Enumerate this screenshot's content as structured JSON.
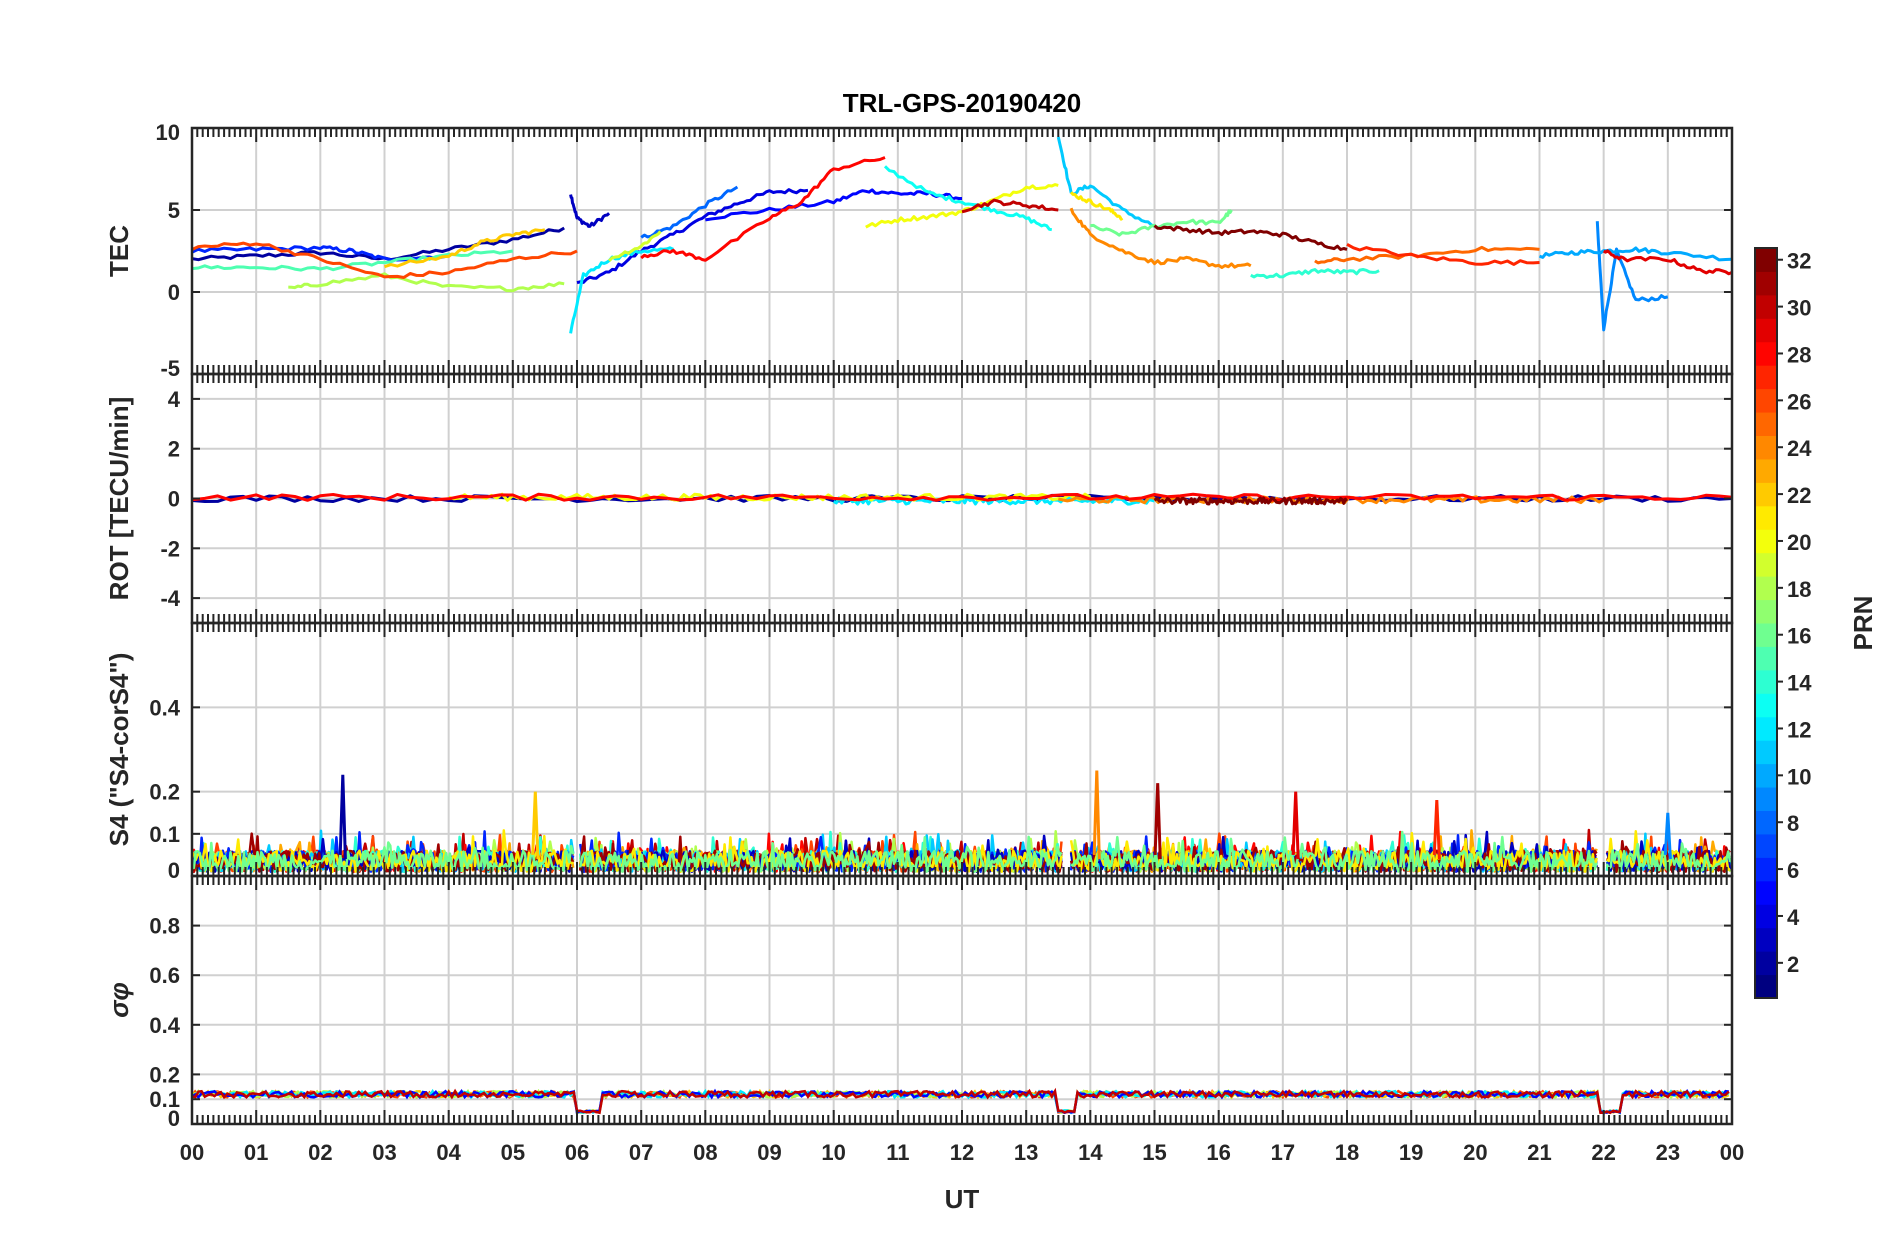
{
  "chart_data": {
    "type": "line",
    "title": "TRL-GPS-20190420",
    "xlabel": "UT",
    "x_tick_labels": [
      "00",
      "01",
      "02",
      "03",
      "04",
      "05",
      "06",
      "07",
      "08",
      "09",
      "10",
      "11",
      "12",
      "13",
      "14",
      "15",
      "16",
      "17",
      "18",
      "19",
      "20",
      "21",
      "22",
      "23",
      "00"
    ],
    "xlim": [
      0,
      24
    ],
    "colorbar": {
      "label": "PRN",
      "range": [
        1,
        32
      ],
      "tick_labels": [
        "2",
        "4",
        "6",
        "8",
        "10",
        "12",
        "14",
        "16",
        "18",
        "20",
        "22",
        "24",
        "26",
        "28",
        "30",
        "32"
      ]
    },
    "panels": [
      {
        "id": "tec",
        "ylabel": "TEC",
        "ylim": [
          -5,
          10
        ],
        "y_tick_labels": [
          "-5",
          "0",
          "5",
          "10"
        ],
        "series": [
          {
            "prn": 2,
            "x": [
              0.0,
              1.0,
              2.0,
              3.0,
              4.0,
              5.0,
              5.8
            ],
            "y": [
              2.0,
              2.2,
              2.4,
              2.0,
              2.6,
              3.2,
              3.9
            ]
          },
          {
            "prn": 3,
            "x": [
              5.9,
              6.0,
              6.2,
              6.5
            ],
            "y": [
              6.0,
              4.5,
              4.0,
              4.8
            ]
          },
          {
            "prn": 4,
            "x": [
              6.0,
              6.5,
              7.0,
              7.5,
              8.0,
              8.5,
              9.0,
              9.6
            ],
            "y": [
              0.5,
              1.2,
              2.5,
              3.5,
              4.6,
              5.4,
              6.1,
              6.2
            ]
          },
          {
            "prn": 5,
            "x": [
              8.0,
              9.0,
              10.0,
              10.5,
              11.0,
              11.5,
              12.0
            ],
            "y": [
              4.5,
              5.0,
              5.5,
              6.2,
              6.0,
              6.0,
              5.7
            ]
          },
          {
            "prn": 6,
            "x": [
              0.0,
              1.0,
              2.0,
              2.5,
              3.0,
              4.0
            ],
            "y": [
              2.5,
              2.6,
              2.7,
              2.5,
              2.0,
              2.2
            ]
          },
          {
            "prn": 8,
            "x": [
              7.0,
              7.5,
              8.0,
              8.5
            ],
            "y": [
              3.3,
              4.0,
              5.3,
              6.4
            ]
          },
          {
            "prn": 9,
            "x": [
              21.9,
              22.0,
              22.2,
              22.5,
              23.0
            ],
            "y": [
              4.2,
              -2.2,
              2.5,
              -0.5,
              -0.3
            ]
          },
          {
            "prn": 10,
            "x": [
              21.0,
              21.5,
              22.0,
              22.5,
              23.0,
              24.0
            ],
            "y": [
              2.2,
              2.4,
              2.5,
              2.6,
              2.4,
              2.0
            ]
          },
          {
            "prn": 11,
            "x": [
              13.5,
              13.7,
              14.0,
              14.5,
              15.0
            ],
            "y": [
              9.5,
              6.0,
              6.5,
              5.0,
              4.0
            ]
          },
          {
            "prn": 12,
            "x": [
              5.9,
              6.1,
              6.5,
              7.0,
              7.5
            ],
            "y": [
              -2.5,
              1.0,
              2.0,
              2.5,
              2.6
            ]
          },
          {
            "prn": 13,
            "x": [
              10.8,
              11.5,
              12.0,
              12.5,
              13.0,
              13.4
            ],
            "y": [
              7.6,
              6.0,
              5.5,
              5.0,
              4.5,
              3.8
            ]
          },
          {
            "prn": 14,
            "x": [
              16.5,
              17.0,
              17.5,
              18.0,
              18.5
            ],
            "y": [
              1.0,
              1.0,
              1.3,
              1.2,
              1.3
            ]
          },
          {
            "prn": 15,
            "x": [
              0.0,
              1.0,
              2.0,
              3.0,
              4.0,
              5.0
            ],
            "y": [
              1.5,
              1.5,
              1.4,
              1.8,
              2.2,
              2.5
            ]
          },
          {
            "prn": 16,
            "x": [
              14.0,
              14.5,
              15.0,
              15.5,
              16.0,
              16.2
            ],
            "y": [
              4.0,
              3.5,
              4.0,
              4.3,
              4.2,
              5.0
            ]
          },
          {
            "prn": 18,
            "x": [
              1.5,
              2.0,
              3.0,
              4.0,
              5.0,
              5.8
            ],
            "y": [
              0.2,
              0.5,
              1.0,
              0.3,
              0.2,
              0.5
            ]
          },
          {
            "prn": 19,
            "x": [
              6.5,
              7.0,
              7.3
            ],
            "y": [
              2.0,
              2.8,
              3.7
            ]
          },
          {
            "prn": 20,
            "x": [
              10.5,
              11.0,
              11.5,
              12.0,
              12.5,
              13.0,
              13.5
            ],
            "y": [
              4.0,
              4.4,
              4.6,
              4.9,
              5.6,
              6.4,
              6.5
            ]
          },
          {
            "prn": 21,
            "x": [
              13.7,
              14.0,
              14.3,
              14.5
            ],
            "y": [
              6.0,
              5.5,
              5.0,
              4.5
            ]
          },
          {
            "prn": 22,
            "x": [
              3.0,
              4.0,
              4.5,
              5.0,
              5.5
            ],
            "y": [
              1.5,
              2.2,
              3.0,
              3.5,
              3.8
            ]
          },
          {
            "prn": 24,
            "x": [
              13.7,
              14.0,
              14.5,
              15.0,
              15.5,
              16.0,
              16.5
            ],
            "y": [
              5.0,
              3.5,
              2.5,
              1.8,
              2.0,
              1.6,
              1.6
            ]
          },
          {
            "prn": 25,
            "x": [
              17.5,
              18.0,
              19.0,
              20.0,
              21.0
            ],
            "y": [
              1.8,
              2.0,
              2.2,
              2.6,
              2.6
            ]
          },
          {
            "prn": 26,
            "x": [
              0.0,
              1.0,
              2.0,
              3.0,
              4.0,
              5.0,
              6.0
            ],
            "y": [
              2.7,
              3.0,
              2.0,
              0.9,
              1.2,
              2.0,
              2.5
            ]
          },
          {
            "prn": 27,
            "x": [
              18.0,
              19.0,
              20.0,
              21.0
            ],
            "y": [
              2.8,
              2.2,
              1.8,
              1.8
            ]
          },
          {
            "prn": 28,
            "x": [
              7.0,
              7.5,
              8.0,
              9.0,
              9.5,
              10.0,
              10.8
            ],
            "y": [
              2.2,
              2.5,
              2.0,
              4.5,
              5.5,
              7.5,
              8.2
            ]
          },
          {
            "prn": 29,
            "x": [
              22.0,
              22.3,
              23.0,
              23.5,
              24.0
            ],
            "y": [
              2.5,
              2.0,
              2.0,
              1.3,
              1.2
            ]
          },
          {
            "prn": 30,
            "x": [
              12.0,
              12.5,
              13.0,
              13.5
            ],
            "y": [
              5.0,
              5.5,
              5.3,
              5.0
            ]
          },
          {
            "prn": 32,
            "x": [
              15.0,
              15.5,
              16.0,
              16.5,
              17.0,
              17.5,
              18.0
            ],
            "y": [
              4.0,
              3.8,
              3.6,
              3.7,
              3.5,
              3.0,
              2.6
            ]
          }
        ]
      },
      {
        "id": "rot",
        "ylabel": "ROT [TECU/min]",
        "ylim": [
          -5,
          5
        ],
        "y_tick_labels": [
          "-4",
          "-2",
          "0",
          "2",
          "4"
        ],
        "series": [
          {
            "prn": 2,
            "x": [
              0.0,
              24.0
            ],
            "y": [
              0.0,
              0.0
            ]
          },
          {
            "prn": 12,
            "x": [
              10.0,
              15.0
            ],
            "y": [
              -0.1,
              -0.1
            ]
          },
          {
            "prn": 20,
            "x": [
              4.0,
              14.0
            ],
            "y": [
              0.05,
              0.05
            ]
          },
          {
            "prn": 24,
            "x": [
              13.5,
              22.0
            ],
            "y": [
              -0.05,
              -0.05
            ]
          },
          {
            "prn": 28,
            "x": [
              0.0,
              24.0
            ],
            "y": [
              0.05,
              0.05
            ]
          },
          {
            "prn": 32,
            "x": [
              15.0,
              18.0
            ],
            "y": [
              -0.1,
              -0.1
            ]
          }
        ]
      },
      {
        "id": "s4",
        "ylabel": "S4 (\"S4-corS4\")",
        "ylim": [
          0,
          0.6
        ],
        "y_tick_labels": [
          "0",
          "0.1",
          "0.2",
          "0.4"
        ],
        "peaks": [
          {
            "prn": 2,
            "x": 2.35,
            "y": 0.24
          },
          {
            "prn": 22,
            "x": 5.35,
            "y": 0.2
          },
          {
            "prn": 24,
            "x": 14.1,
            "y": 0.25
          },
          {
            "prn": 31,
            "x": 15.05,
            "y": 0.22
          },
          {
            "prn": 29,
            "x": 17.2,
            "y": 0.2
          },
          {
            "prn": 27,
            "x": 19.4,
            "y": 0.18
          },
          {
            "prn": 9,
            "x": 23.0,
            "y": 0.15
          }
        ]
      },
      {
        "id": "sigma",
        "ylabel": "σφ",
        "ylim": [
          0,
          1
        ],
        "y_tick_labels": [
          "0",
          "0.1",
          "0.2",
          "0.4",
          "0.6",
          "0.8"
        ],
        "baseline": 0.12,
        "dips": [
          {
            "from": 5.95,
            "to": 6.35,
            "y": 0.05
          },
          {
            "from": 13.5,
            "to": 13.8,
            "y": 0.05
          },
          {
            "from": 21.95,
            "to": 22.3,
            "y": 0.05
          }
        ]
      }
    ]
  }
}
